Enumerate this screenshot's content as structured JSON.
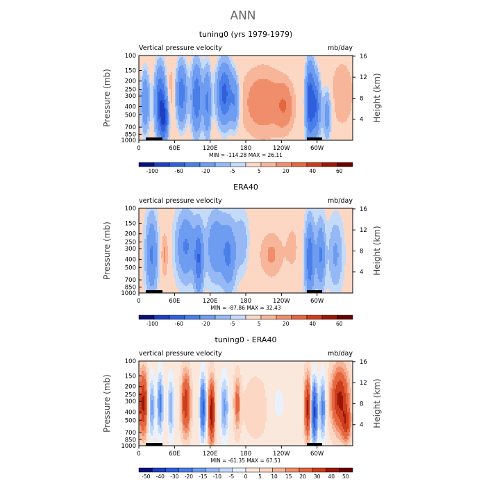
{
  "figure": {
    "title": "ANN"
  },
  "colors": {
    "contour_panel_1_2": [
      "#08107a",
      "#1d3fc0",
      "#2f5fdc",
      "#4a7ee8",
      "#6e9cf0",
      "#96b9f5",
      "#c4daf9",
      "#fbd7c4",
      "#f7b59a",
      "#f08d6a",
      "#e3663f",
      "#cc3d1c",
      "#9a1708",
      "#680000"
    ],
    "contour_panel_3": [
      "#08107a",
      "#1d3fc0",
      "#2f5fdc",
      "#4a7ee8",
      "#6e9cf0",
      "#96b9f5",
      "#c4daf9",
      "#e9f1fc",
      "#fbe8dc",
      "#fbd7c4",
      "#f7b59a",
      "#f08d6a",
      "#e3663f",
      "#cc3d1c",
      "#9a1708",
      "#680000"
    ]
  },
  "chart_data": [
    {
      "type": "heatmap",
      "title": "tuning0 (yrs 1979-1979)",
      "left_string": "Vertical pressure velocity",
      "right_string": "mb/day",
      "ylabel": "Pressure (mb)",
      "y2label": "Height (km)",
      "x_ticks": [
        "0",
        "60E",
        "120E",
        "180",
        "120W",
        "60W"
      ],
      "y_ticks": [
        "100",
        "150",
        "200",
        "250",
        "300",
        "400",
        "500",
        "700",
        "850",
        "1000"
      ],
      "y2_ticks": [
        "16",
        "12",
        "8",
        "4"
      ],
      "stats": "MIN = -114.28   MAX =  26.11",
      "colorbar_labels": [
        "-100",
        "-60",
        "-20",
        "-5",
        "5",
        "20",
        "40",
        "60"
      ],
      "min": -114.28,
      "max": 26.11
    },
    {
      "type": "heatmap",
      "title": "ERA40",
      "left_string": "vertical pressure velocity",
      "right_string": "mb/day",
      "ylabel": "Pressure (mb)",
      "y2label": "Height (km)",
      "x_ticks": [
        "0",
        "60E",
        "120E",
        "180",
        "120W",
        "60W"
      ],
      "y_ticks": [
        "100",
        "150",
        "200",
        "250",
        "300",
        "400",
        "500",
        "700",
        "850",
        "1000"
      ],
      "y2_ticks": [
        "16",
        "12",
        "8",
        "4"
      ],
      "stats": "MIN = -87.86   MAX =  32.43",
      "colorbar_labels": [
        "-100",
        "-60",
        "-20",
        "-5",
        "5",
        "20",
        "40",
        "60"
      ],
      "min": -87.86,
      "max": 32.43
    },
    {
      "type": "heatmap",
      "title": "tuning0 - ERA40",
      "left_string": "vertical pressure velocity",
      "right_string": "mb/day",
      "ylabel": "Pressure (mb)",
      "y2label": "Height (km)",
      "x_ticks": [
        "0",
        "60E",
        "120E",
        "180",
        "120W",
        "60W"
      ],
      "y_ticks": [
        "100",
        "150",
        "200",
        "250",
        "300",
        "400",
        "500",
        "700",
        "850",
        "1000"
      ],
      "y2_ticks": [
        "16",
        "12",
        "8",
        "4"
      ],
      "stats": "MIN = -61.35   MAX =  67.51",
      "colorbar_labels": [
        "-50",
        "-40",
        "-30",
        "-20",
        "-15",
        "-10",
        "-5",
        "0",
        "5",
        "10",
        "15",
        "20",
        "30",
        "40",
        "50"
      ],
      "min": -61.35,
      "max": 67.51
    }
  ]
}
